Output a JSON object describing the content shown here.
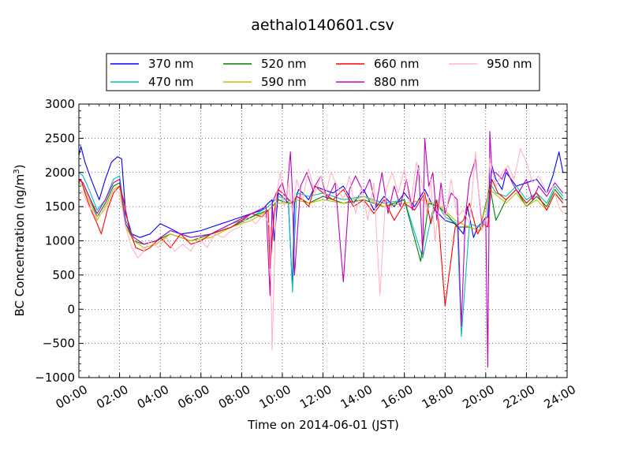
{
  "chart_data": {
    "type": "line",
    "title": "aethalo140601.csv",
    "xlabel": "Time on 2014-06-01 (JST)",
    "ylabel_main": "BC Concentration (ng/m",
    "ylabel_sup": "3",
    "ylabel_end": ")",
    "xlim": [
      0,
      24
    ],
    "ylim": [
      -1000,
      3000
    ],
    "grid": true,
    "grid_style": "dotted",
    "legend_placement": "top-center",
    "x_tick_values": [
      0,
      2,
      4,
      6,
      8,
      10,
      12,
      14,
      16,
      18,
      20,
      22,
      24
    ],
    "x_tick_labels": [
      "00:00",
      "02:00",
      "04:00",
      "06:00",
      "08:00",
      "10:00",
      "12:00",
      "14:00",
      "16:00",
      "18:00",
      "20:00",
      "22:00",
      "24:00"
    ],
    "y_ticks": [
      -1000,
      -500,
      0,
      500,
      1000,
      1500,
      2000,
      2500,
      3000
    ],
    "y_tick_labels": [
      "−1000",
      "−500",
      "0",
      "500",
      "1000",
      "1500",
      "2000",
      "2500",
      "3000"
    ],
    "legend": [
      {
        "label": "370 nm",
        "color": "#0000ff"
      },
      {
        "label": "520 nm",
        "color": "#008000"
      },
      {
        "label": "660 nm",
        "color": "#ff0000"
      },
      {
        "label": "950 nm",
        "color": "#ffb6c1"
      },
      {
        "label": "470 nm",
        "color": "#00bfbf"
      },
      {
        "label": "590 nm",
        "color": "#bfbf00"
      },
      {
        "label": "880 nm",
        "color": "#bf00bf"
      }
    ],
    "series": [
      {
        "name": "370 nm",
        "color": "#0000ff",
        "x": [
          0,
          0.1,
          0.3,
          0.6,
          1,
          1.3,
          1.6,
          1.9,
          2.1,
          2.3,
          2.6,
          3,
          3.5,
          4,
          4.5,
          5,
          5.5,
          6,
          6.5,
          7,
          7.5,
          8,
          8.5,
          9,
          9.3,
          9.5,
          9.6,
          9.8,
          10,
          10.3,
          10.5,
          10.6,
          10.8,
          11,
          11.3,
          11.6,
          12,
          12.5,
          13,
          13.5,
          14,
          14.5,
          15,
          15.5,
          16,
          16.5,
          17,
          17.5,
          18,
          18.5,
          18.9,
          19.1,
          19.4,
          19.6,
          19.9,
          20.1,
          20.3,
          20.5,
          20.8,
          21,
          21.5,
          22,
          22.5,
          23,
          23.3,
          23.6,
          23.8
        ],
        "values": [
          2250,
          2380,
          2150,
          1900,
          1600,
          1900,
          2150,
          2230,
          2200,
          1400,
          1100,
          1050,
          1100,
          1250,
          1180,
          1100,
          1120,
          1150,
          1200,
          1250,
          1300,
          1350,
          1400,
          1450,
          1550,
          1600,
          1000,
          1700,
          1650,
          1550,
          300,
          1550,
          1750,
          1700,
          1600,
          1800,
          1750,
          1700,
          1800,
          1550,
          1750,
          1450,
          1650,
          1500,
          1700,
          1500,
          1750,
          1450,
          1300,
          1250,
          1100,
          1500,
          1050,
          1200,
          1300,
          1350,
          2100,
          1900,
          1750,
          2000,
          1800,
          1850,
          1900,
          1700,
          1950,
          2300,
          2000
        ]
      },
      {
        "name": "470 nm",
        "color": "#00bfbf",
        "x": [
          0,
          0.2,
          0.5,
          0.9,
          1.3,
          1.7,
          2,
          2.3,
          2.7,
          3.2,
          3.8,
          4.5,
          5.5,
          6.5,
          7.5,
          8.5,
          9.3,
          9.5,
          9.8,
          10.3,
          10.5,
          10.7,
          11.3,
          12,
          13,
          14,
          15,
          16,
          16.9,
          17.5,
          18,
          18.6,
          18.8,
          19.2,
          19.7,
          20,
          20.2,
          20.5,
          21,
          21.5,
          22,
          22.5,
          23,
          23.4,
          23.8
        ],
        "values": [
          2000,
          1950,
          1750,
          1450,
          1600,
          1900,
          1950,
          1300,
          1050,
          950,
          1000,
          1150,
          1050,
          1100,
          1250,
          1350,
          1500,
          1550,
          1650,
          1600,
          250,
          1700,
          1650,
          1700,
          1600,
          1650,
          1550,
          1600,
          750,
          1600,
          1350,
          1250,
          -400,
          1250,
          1200,
          1300,
          1850,
          1700,
          1650,
          1800,
          1600,
          1700,
          1550,
          1800,
          1650
        ]
      },
      {
        "name": "520 nm",
        "color": "#008000",
        "x": [
          0,
          0.2,
          0.5,
          0.9,
          1.3,
          1.7,
          2,
          2.3,
          2.7,
          3.2,
          3.8,
          4.5,
          5.5,
          6.5,
          7.5,
          8.5,
          9.3,
          9.5,
          9.8,
          10.3,
          10.5,
          10.7,
          11.3,
          12,
          13,
          14,
          15,
          16,
          16.8,
          17.2,
          17.7,
          18.2,
          18.6,
          19.2,
          19.7,
          20.2,
          20.5,
          21,
          21.5,
          22,
          22.5,
          23,
          23.4,
          23.8
        ],
        "values": [
          1900,
          1850,
          1650,
          1350,
          1550,
          1800,
          1850,
          1250,
          1000,
          950,
          1000,
          1100,
          1000,
          1100,
          1200,
          1350,
          1450,
          1500,
          1600,
          1550,
          1550,
          1650,
          1550,
          1650,
          1550,
          1600,
          1500,
          1600,
          700,
          1550,
          1500,
          1350,
          1200,
          1200,
          1150,
          1800,
          1300,
          1600,
          1750,
          1500,
          1650,
          1500,
          1750,
          1600
        ]
      },
      {
        "name": "590 nm",
        "color": "#bfbf00",
        "x": [
          0,
          0.2,
          0.5,
          0.9,
          1.3,
          1.7,
          2,
          2.3,
          2.7,
          3.2,
          3.8,
          4.5,
          5.5,
          6.5,
          7.5,
          8.5,
          9.3,
          9.5,
          9.8,
          10.3,
          10.7,
          11.3,
          12,
          13,
          14,
          15,
          16,
          17,
          17.8,
          18.5,
          19.2,
          19.7,
          20.2,
          20.6,
          21,
          21.5,
          22,
          22.5,
          23,
          23.4,
          23.8
        ],
        "values": [
          1850,
          1800,
          1600,
          1300,
          1500,
          1750,
          1800,
          1200,
          1000,
          900,
          950,
          1100,
          1000,
          1050,
          1200,
          1300,
          1450,
          1500,
          1550,
          1550,
          1600,
          1550,
          1600,
          1550,
          1650,
          1500,
          1550,
          1600,
          1500,
          1300,
          1200,
          1150,
          1750,
          1650,
          1550,
          1700,
          1500,
          1600,
          1450,
          1700,
          1550
        ]
      },
      {
        "name": "660 nm",
        "color": "#ff0000",
        "x": [
          0,
          0.1,
          0.3,
          0.6,
          0.9,
          1.1,
          1.4,
          1.7,
          2,
          2.2,
          2.5,
          2.8,
          3.2,
          3.5,
          4,
          4.5,
          5,
          5.5,
          6,
          6.5,
          7,
          7.5,
          8,
          8.5,
          9,
          9.3,
          9.4,
          9.6,
          9.8,
          10,
          10.5,
          10.7,
          11,
          11.3,
          11.6,
          12,
          12.5,
          13,
          13.5,
          14,
          14.5,
          15,
          15.5,
          16,
          16.5,
          17,
          17.3,
          17.6,
          18,
          18.5,
          18.9,
          19.2,
          19.6,
          19.9,
          20.1,
          20.3,
          20.6,
          21,
          21.5,
          22,
          22.5,
          23,
          23.4,
          23.8
        ],
        "values": [
          1850,
          1900,
          1700,
          1450,
          1250,
          1100,
          1450,
          1700,
          1800,
          1600,
          1150,
          900,
          850,
          900,
          1050,
          900,
          1100,
          950,
          1000,
          1100,
          1150,
          1200,
          1300,
          1400,
          1350,
          1450,
          600,
          1400,
          1750,
          1700,
          1550,
          1650,
          1600,
          1500,
          1800,
          1700,
          1600,
          1750,
          1500,
          1600,
          1400,
          1600,
          1300,
          1550,
          1450,
          1700,
          1250,
          1600,
          50,
          1200,
          1300,
          1550,
          1100,
          1250,
          1200,
          1900,
          1700,
          1600,
          1750,
          1550,
          1700,
          1450,
          1700,
          1550
        ]
      },
      {
        "name": "880 nm",
        "color": "#bf00bf",
        "x": [
          0,
          0.2,
          0.5,
          0.9,
          1.3,
          1.7,
          2,
          2.3,
          2.7,
          3.2,
          3.8,
          4.5,
          5.5,
          6.5,
          7.5,
          8.5,
          9.2,
          9.4,
          9.5,
          9.7,
          10,
          10.2,
          10.4,
          10.5,
          10.6,
          10.9,
          11.2,
          11.5,
          11.9,
          12.2,
          12.6,
          13,
          13.3,
          13.6,
          14,
          14.3,
          14.6,
          14.9,
          15.2,
          15.5,
          15.8,
          16.1,
          16.4,
          16.7,
          16.9,
          17,
          17.2,
          17.4,
          17.6,
          17.8,
          18,
          18.3,
          18.6,
          18.8,
          19,
          19.2,
          19.5,
          19.8,
          20,
          20.1,
          20.2,
          20.3,
          20.5,
          20.8,
          21,
          21.3,
          21.6,
          22,
          22.3,
          22.6,
          23,
          23.4,
          23.8
        ],
        "values": [
          1900,
          1850,
          1650,
          1400,
          1600,
          1850,
          1900,
          1250,
          1050,
          950,
          1000,
          1150,
          1050,
          1100,
          1250,
          1400,
          1500,
          200,
          1550,
          1700,
          1850,
          1600,
          2300,
          1700,
          500,
          1800,
          2000,
          1750,
          1950,
          1600,
          1850,
          400,
          1750,
          1950,
          1700,
          1900,
          1500,
          2000,
          1400,
          1800,
          1500,
          1900,
          1450,
          2100,
          800,
          2500,
          1800,
          2000,
          1300,
          1850,
          1400,
          1700,
          1600,
          -250,
          1350,
          1900,
          2200,
          1250,
          1350,
          -850,
          2600,
          2000,
          2000,
          1900,
          2050,
          1850,
          1700,
          1900,
          1600,
          1800,
          1650,
          1850,
          1700
        ]
      },
      {
        "name": "950 nm",
        "color": "#ffb6c1",
        "x": [
          0,
          0.2,
          0.5,
          0.9,
          1.3,
          1.7,
          2,
          2.3,
          2.6,
          2.9,
          3.2,
          3.5,
          3.9,
          4.3,
          4.7,
          5.1,
          5.5,
          5.9,
          6.3,
          6.7,
          7.1,
          7.5,
          7.9,
          8.3,
          8.7,
          9.1,
          9.4,
          9.5,
          9.7,
          9.9,
          10.1,
          10.3,
          10.5,
          10.7,
          11,
          11.3,
          11.6,
          11.9,
          12.1,
          12.4,
          12.7,
          13,
          13.3,
          13.6,
          13.9,
          14.2,
          14.5,
          14.8,
          15.1,
          15.4,
          15.7,
          16,
          16.3,
          16.6,
          16.9,
          17.1,
          17.3,
          17.5,
          17.8,
          18,
          18.3,
          18.6,
          18.9,
          19.2,
          19.5,
          19.8,
          20,
          20.2,
          20.5,
          20.8,
          21.1,
          21.4,
          21.7,
          22,
          22.3,
          22.6,
          23,
          23.3,
          23.6,
          23.8
        ],
        "values": [
          1750,
          1700,
          1500,
          1350,
          1450,
          1750,
          1700,
          1200,
          900,
          750,
          850,
          1000,
          900,
          1050,
          850,
          950,
          850,
          1050,
          900,
          1100,
          1050,
          1150,
          1200,
          1350,
          1250,
          1400,
          1200,
          -600,
          1650,
          2000,
          1500,
          1850,
          1400,
          1900,
          1600,
          2050,
          1700,
          1950,
          1650,
          2000,
          1800,
          1600,
          1950,
          1400,
          1800,
          1300,
          1850,
          200,
          1750,
          2000,
          1700,
          2050,
          1500,
          2150,
          1800,
          1400,
          1900,
          1000,
          1700,
          1300,
          1900,
          1350,
          1450,
          1250,
          2300,
          1150,
          1300,
          2200,
          1800,
          2000,
          2100,
          1900,
          2350,
          2150,
          1850,
          1950,
          1700,
          1800,
          1500,
          1400
        ]
      }
    ]
  }
}
